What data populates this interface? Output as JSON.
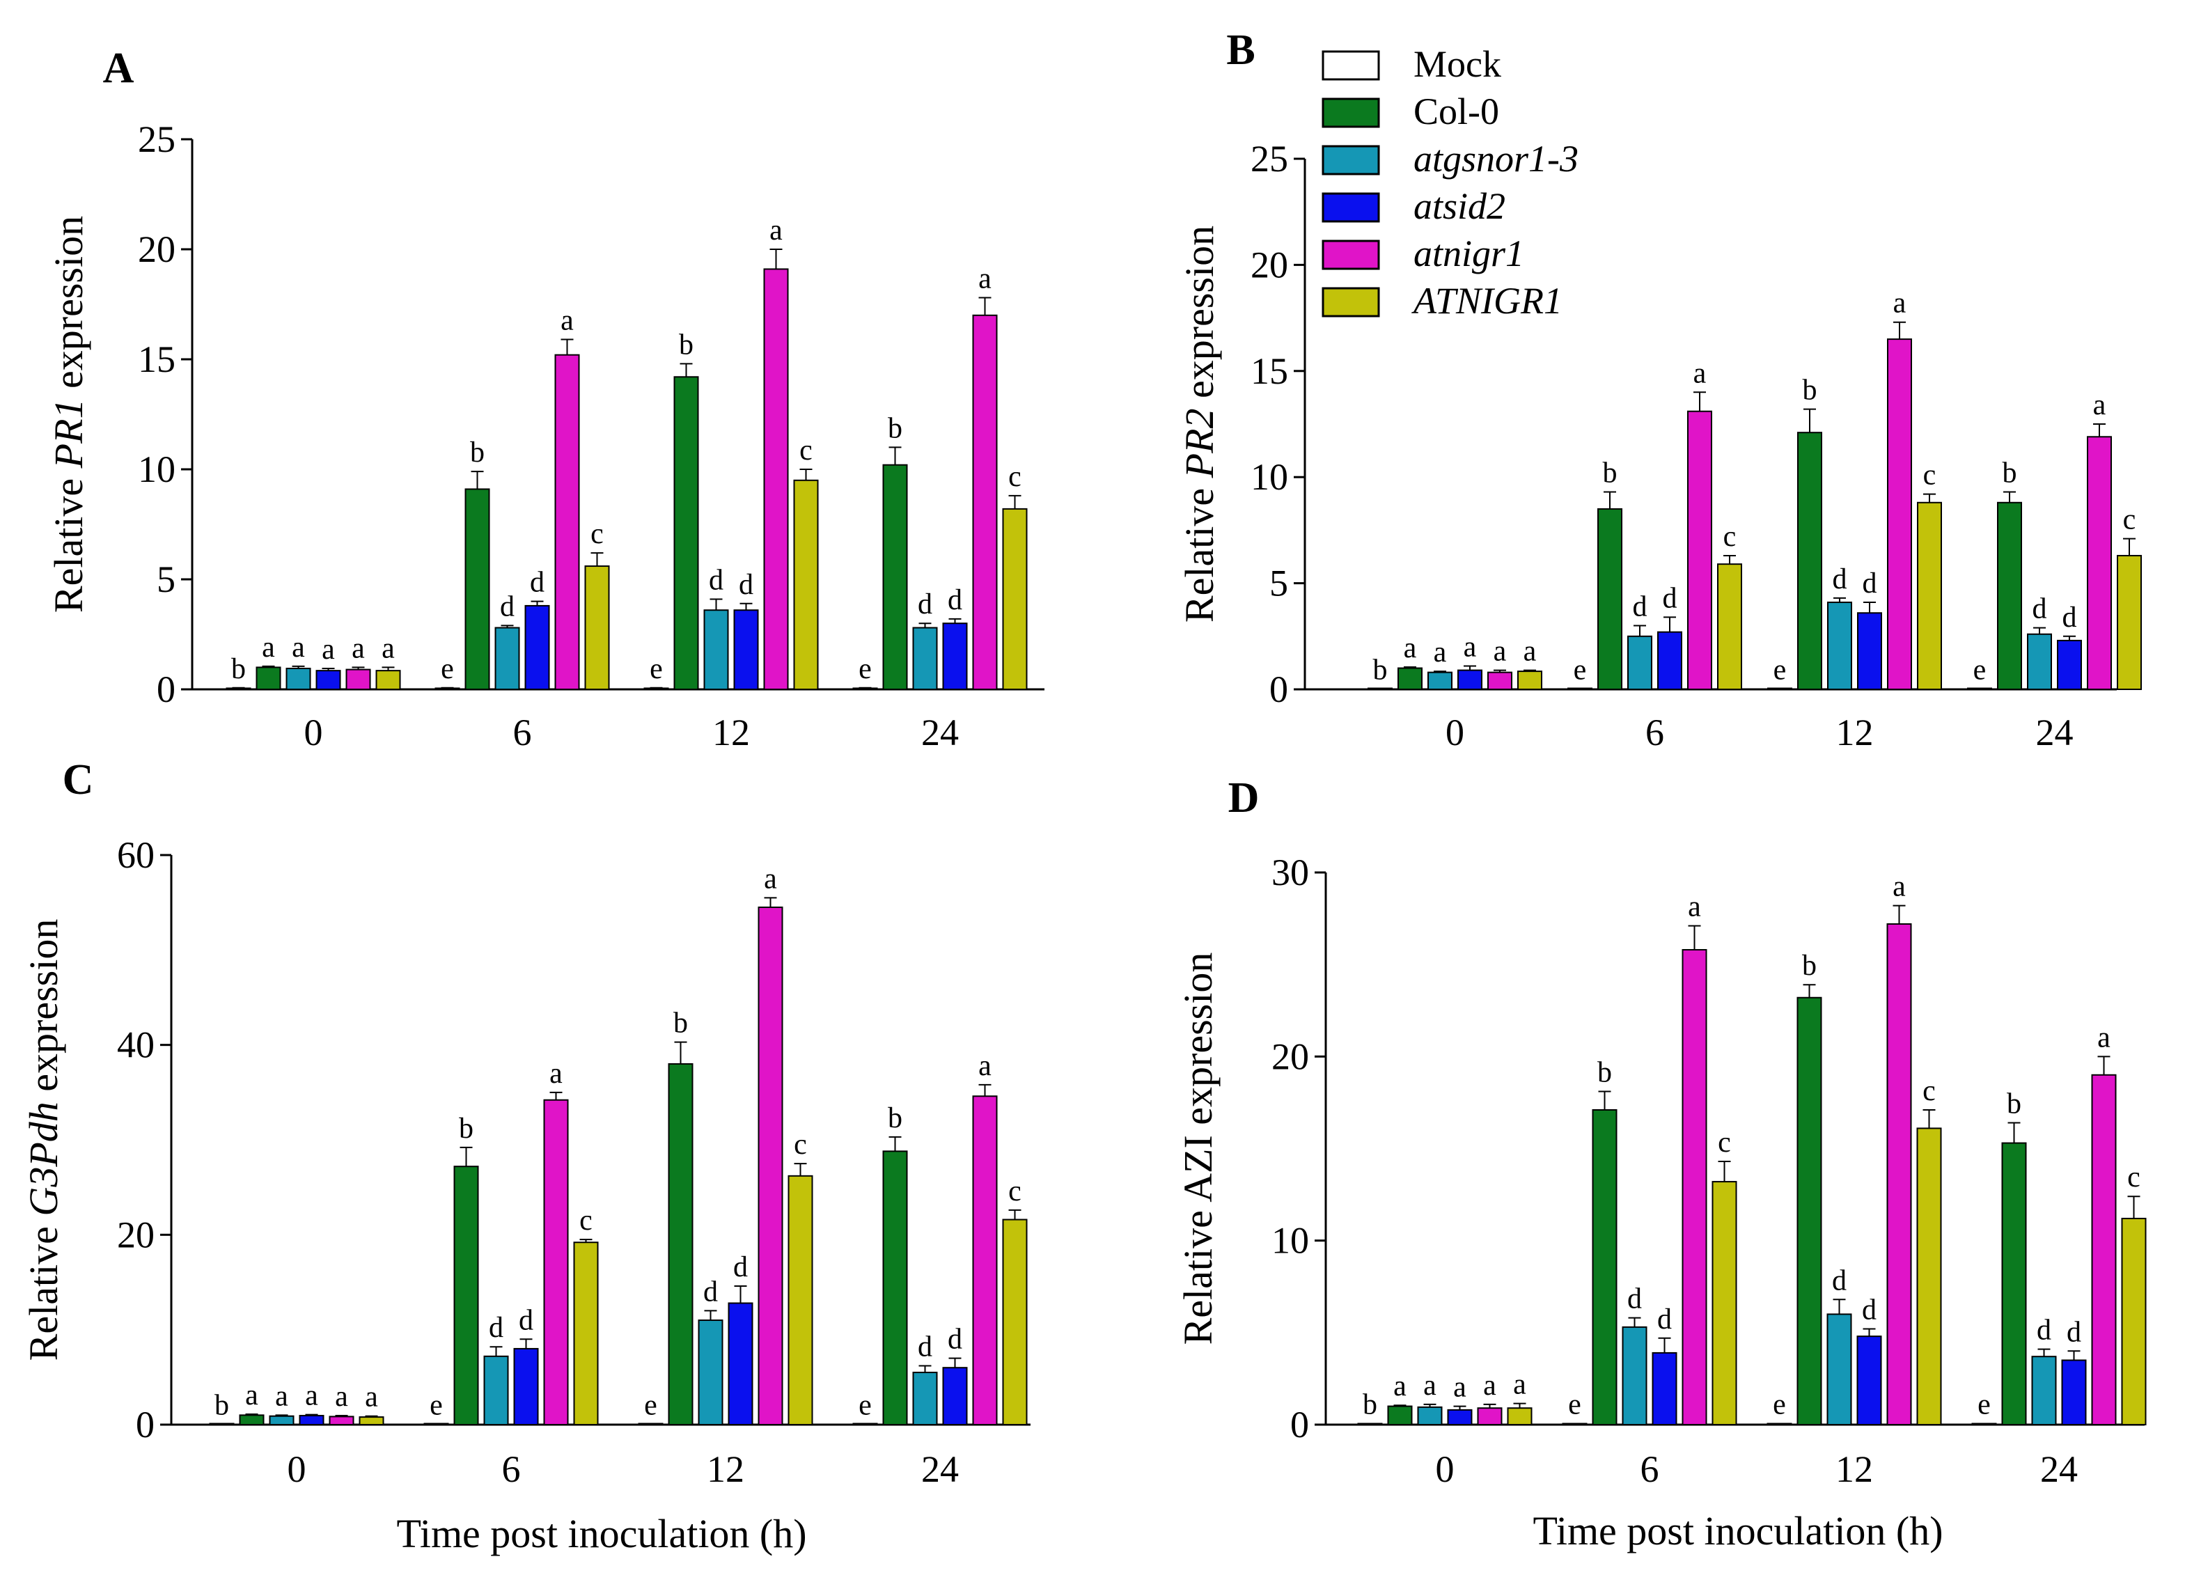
{
  "figure": {
    "legend": {
      "entries": [
        {
          "label": "Mock",
          "color": "#ffffff",
          "italic": false
        },
        {
          "label": "Col-0",
          "color": "#0b7a1f",
          "italic": false
        },
        {
          "label": "atgsnor1-3",
          "color": "#1597b5",
          "italic": true
        },
        {
          "label": "atsid2",
          "color": "#0a10ee",
          "italic": true
        },
        {
          "label": "atnigr1",
          "color": "#e014c8",
          "italic": true
        },
        {
          "label": "ATNIGR1",
          "color": "#c2c20a",
          "italic": true
        }
      ]
    },
    "shared_xlabel": "Time post inoculation (h)"
  },
  "chart_data": [
    {
      "panel": "A",
      "type": "bar",
      "categories": [
        "0",
        "6",
        "12",
        "24"
      ],
      "ylabel_prefix": "Relative ",
      "ylabel_gene": "PR1",
      "ylabel_suffix": " expression",
      "gene_italic": true,
      "ylim": [
        0,
        25
      ],
      "yticks": [
        0,
        5,
        10,
        15,
        20,
        25
      ],
      "series": [
        {
          "name": "Mock",
          "values": [
            0.05,
            0.05,
            0.05,
            0.05
          ],
          "errors": [
            0.02,
            0.02,
            0.02,
            0.02
          ],
          "letters": [
            "b",
            "e",
            "e",
            "e"
          ]
        },
        {
          "name": "Col-0",
          "values": [
            1.0,
            9.1,
            14.2,
            10.2
          ],
          "errors": [
            0.05,
            0.8,
            0.6,
            0.8
          ],
          "letters": [
            "a",
            "b",
            "b",
            "b"
          ]
        },
        {
          "name": "atgsnor1-3",
          "values": [
            0.95,
            2.8,
            3.6,
            2.8
          ],
          "errors": [
            0.1,
            0.1,
            0.5,
            0.2
          ],
          "letters": [
            "a",
            "d",
            "d",
            "d"
          ]
        },
        {
          "name": "atsid2",
          "values": [
            0.85,
            3.8,
            3.6,
            3.0
          ],
          "errors": [
            0.1,
            0.2,
            0.3,
            0.2
          ],
          "letters": [
            "a",
            "d",
            "d",
            "d"
          ]
        },
        {
          "name": "atnigr1",
          "values": [
            0.9,
            15.2,
            19.1,
            17.0
          ],
          "errors": [
            0.1,
            0.7,
            0.9,
            0.8
          ],
          "letters": [
            "a",
            "a",
            "a",
            "a"
          ]
        },
        {
          "name": "ATNIGR1",
          "values": [
            0.85,
            5.6,
            9.5,
            8.2
          ],
          "errors": [
            0.15,
            0.6,
            0.5,
            0.6
          ],
          "letters": [
            "a",
            "c",
            "c",
            "c"
          ]
        }
      ]
    },
    {
      "panel": "B",
      "type": "bar",
      "categories": [
        "0",
        "6",
        "12",
        "24"
      ],
      "ylabel_prefix": "Relative ",
      "ylabel_gene": "PR2",
      "ylabel_suffix": " expression",
      "gene_italic": true,
      "ylim": [
        0,
        25
      ],
      "yticks": [
        0,
        5,
        10,
        15,
        20,
        25
      ],
      "series": [
        {
          "name": "Mock",
          "values": [
            0.02,
            0.02,
            0.02,
            0.02
          ],
          "errors": [
            0,
            0,
            0,
            0
          ],
          "letters": [
            "b",
            "e",
            "e",
            "e"
          ]
        },
        {
          "name": "Col-0",
          "values": [
            1.0,
            8.5,
            12.1,
            8.8
          ],
          "errors": [
            0.05,
            0.8,
            1.1,
            0.5
          ],
          "letters": [
            "a",
            "b",
            "b",
            "b"
          ]
        },
        {
          "name": "atgsnor1-3",
          "values": [
            0.8,
            2.5,
            4.1,
            2.6
          ],
          "errors": [
            0.05,
            0.5,
            0.2,
            0.3
          ],
          "letters": [
            "a",
            "d",
            "d",
            "d"
          ]
        },
        {
          "name": "atsid2",
          "values": [
            0.9,
            2.7,
            3.6,
            2.3
          ],
          "errors": [
            0.2,
            0.7,
            0.5,
            0.2
          ],
          "letters": [
            "a",
            "d",
            "d",
            "d"
          ]
        },
        {
          "name": "atnigr1",
          "values": [
            0.8,
            13.1,
            16.5,
            11.9
          ],
          "errors": [
            0.1,
            0.9,
            0.8,
            0.6
          ],
          "letters": [
            "a",
            "a",
            "a",
            "a"
          ]
        },
        {
          "name": "ATNIGR1",
          "values": [
            0.85,
            5.9,
            8.8,
            6.3
          ],
          "errors": [
            0.05,
            0.4,
            0.4,
            0.8
          ],
          "letters": [
            "a",
            "c",
            "c",
            "c"
          ]
        }
      ]
    },
    {
      "panel": "C",
      "type": "bar",
      "categories": [
        "0",
        "6",
        "12",
        "24"
      ],
      "ylabel_prefix": "Relative ",
      "ylabel_gene": "G3Pdh",
      "ylabel_suffix": " expression",
      "gene_italic": true,
      "ylim": [
        0,
        60
      ],
      "yticks": [
        0,
        20,
        40,
        60
      ],
      "series": [
        {
          "name": "Mock",
          "values": [
            0.05,
            0.05,
            0.05,
            0.05
          ],
          "errors": [
            0,
            0,
            0,
            0
          ],
          "letters": [
            "b",
            "e",
            "e",
            "e"
          ]
        },
        {
          "name": "Col-0",
          "values": [
            1.0,
            27.2,
            38.0,
            28.8
          ],
          "errors": [
            0.1,
            2.0,
            2.3,
            1.5
          ],
          "letters": [
            "a",
            "b",
            "b",
            "b"
          ]
        },
        {
          "name": "atgsnor1-3",
          "values": [
            0.9,
            7.2,
            11.0,
            5.5
          ],
          "errors": [
            0.1,
            1.0,
            1.0,
            0.7
          ],
          "letters": [
            "a",
            "d",
            "d",
            "d"
          ]
        },
        {
          "name": "atsid2",
          "values": [
            0.95,
            8.0,
            12.8,
            6.0
          ],
          "errors": [
            0.1,
            1.0,
            1.8,
            1.0
          ],
          "letters": [
            "a",
            "d",
            "d",
            "d"
          ]
        },
        {
          "name": "atnigr1",
          "values": [
            0.85,
            34.2,
            54.5,
            34.6
          ],
          "errors": [
            0.1,
            0.8,
            1.0,
            1.2
          ],
          "letters": [
            "a",
            "a",
            "a",
            "a"
          ]
        },
        {
          "name": "ATNIGR1",
          "values": [
            0.8,
            19.2,
            26.2,
            21.6
          ],
          "errors": [
            0.1,
            0.3,
            1.3,
            1.0
          ],
          "letters": [
            "a",
            "c",
            "c",
            "c"
          ]
        }
      ]
    },
    {
      "panel": "D",
      "type": "bar",
      "categories": [
        "0",
        "6",
        "12",
        "24"
      ],
      "ylabel_prefix": "Relative ",
      "ylabel_gene": "AZI",
      "ylabel_suffix": " expression",
      "gene_italic": false,
      "ylim": [
        0,
        30
      ],
      "yticks": [
        0,
        10,
        20,
        30
      ],
      "series": [
        {
          "name": "Mock",
          "values": [
            0.05,
            0.05,
            0.05,
            0.05
          ],
          "errors": [
            0,
            0,
            0,
            0
          ],
          "letters": [
            "b",
            "e",
            "e",
            "e"
          ]
        },
        {
          "name": "Col-0",
          "values": [
            1.0,
            17.1,
            23.2,
            15.3
          ],
          "errors": [
            0.05,
            1.0,
            0.7,
            1.1
          ],
          "letters": [
            "a",
            "b",
            "b",
            "b"
          ]
        },
        {
          "name": "atgsnor1-3",
          "values": [
            0.95,
            5.3,
            6.0,
            3.7
          ],
          "errors": [
            0.15,
            0.5,
            0.8,
            0.4
          ],
          "letters": [
            "a",
            "d",
            "d",
            "d"
          ]
        },
        {
          "name": "atsid2",
          "values": [
            0.8,
            3.9,
            4.8,
            3.5
          ],
          "errors": [
            0.2,
            0.8,
            0.4,
            0.5
          ],
          "letters": [
            "a",
            "d",
            "d",
            "d"
          ]
        },
        {
          "name": "atnigr1",
          "values": [
            0.9,
            25.8,
            27.2,
            19.0
          ],
          "errors": [
            0.2,
            1.3,
            1.0,
            1.0
          ],
          "letters": [
            "a",
            "a",
            "a",
            "a"
          ]
        },
        {
          "name": "ATNIGR1",
          "values": [
            0.9,
            13.2,
            16.1,
            11.2
          ],
          "errors": [
            0.25,
            1.1,
            1.0,
            1.2
          ],
          "letters": [
            "a",
            "c",
            "c",
            "c"
          ]
        }
      ]
    }
  ]
}
